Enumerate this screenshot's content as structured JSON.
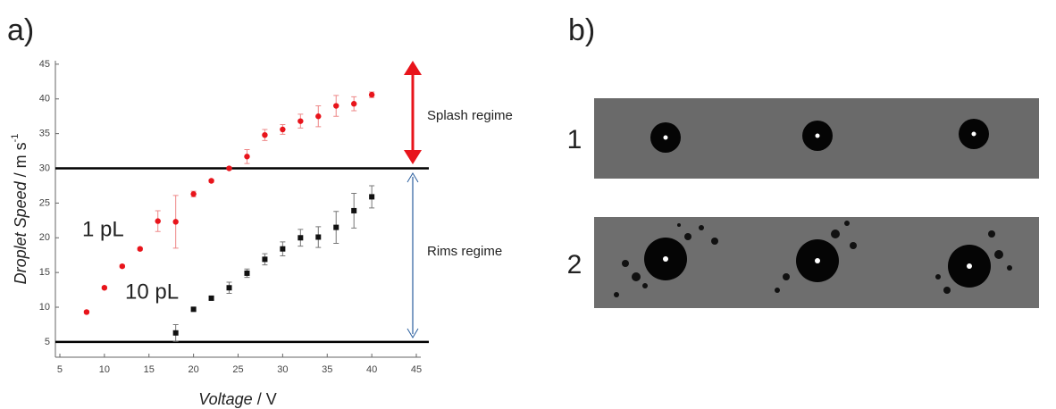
{
  "panel_a": "a)",
  "panel_b": "b)",
  "chart_data": {
    "type": "scatter",
    "xlabel": "Voltage",
    "xunit": "/ V",
    "ylabel": "Droplet Speed",
    "yunit": "/ m s",
    "yunit_exp": "-1",
    "xlim": [
      4.5,
      45.5
    ],
    "ylim": [
      2.8,
      45.5
    ],
    "xticks": [
      5,
      10,
      15,
      20,
      25,
      30,
      35,
      40,
      45
    ],
    "yticks": [
      5,
      10,
      15,
      20,
      25,
      30,
      35,
      40,
      45
    ],
    "hlines": [
      30,
      5
    ],
    "series": [
      {
        "name": "1 pL",
        "color": "#e8141b",
        "marker": "circle",
        "x": [
          8,
          10,
          12,
          14,
          16,
          18,
          20,
          22,
          24,
          26,
          28,
          30,
          32,
          34,
          36,
          38,
          40
        ],
        "values": [
          9.3,
          12.8,
          15.9,
          18.4,
          22.4,
          22.3,
          26.3,
          28.2,
          30,
          31.7,
          34.8,
          35.6,
          36.8,
          37.5,
          39,
          39.3,
          40.6
        ],
        "errors": [
          0.2,
          0.2,
          0.2,
          0.2,
          1.5,
          3.8,
          0.4,
          0.2,
          0.2,
          1,
          0.8,
          0.7,
          1,
          1.5,
          1.5,
          1,
          0.4
        ]
      },
      {
        "name": "10 pL",
        "color": "#111111",
        "marker": "square",
        "x": [
          18,
          20,
          22,
          24,
          26,
          28,
          30,
          32,
          34,
          36,
          38,
          40
        ],
        "values": [
          6.3,
          9.7,
          11.3,
          12.8,
          14.9,
          16.9,
          18.4,
          20,
          20.1,
          21.5,
          23.9,
          25.9
        ],
        "errors": [
          1.2,
          0.2,
          0.2,
          0.8,
          0.6,
          0.8,
          1,
          1.2,
          1.5,
          2.3,
          2.5,
          1.6
        ]
      }
    ],
    "annotations": [
      "Splash regime",
      "Rims regime"
    ]
  },
  "images": {
    "rows": [
      "1",
      "2"
    ]
  }
}
